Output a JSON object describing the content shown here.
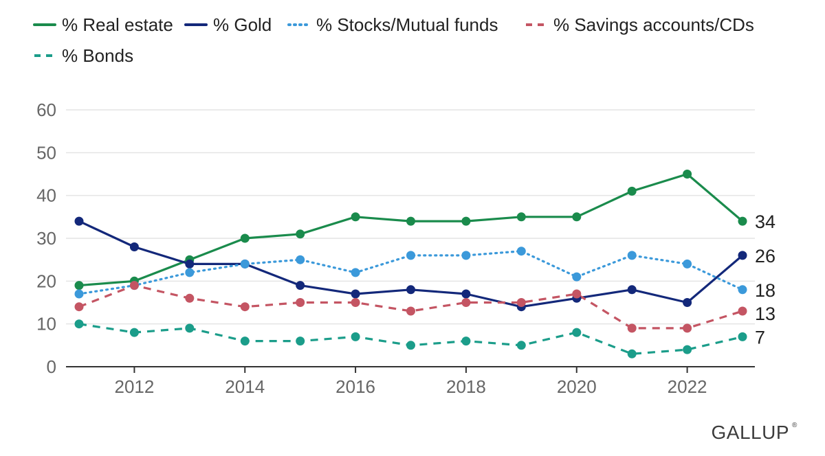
{
  "chart_data": {
    "type": "line",
    "title": "",
    "xlabel": "",
    "ylabel": "",
    "x": [
      2011,
      2012,
      2013,
      2014,
      2015,
      2016,
      2017,
      2018,
      2019,
      2020,
      2021,
      2022,
      2023
    ],
    "xlim": [
      2011,
      2023
    ],
    "ylim": [
      0,
      60
    ],
    "x_ticks": [
      "2012",
      "2014",
      "2016",
      "2018",
      "2020",
      "2022"
    ],
    "y_ticks": [
      "0",
      "10",
      "20",
      "30",
      "40",
      "50",
      "60"
    ],
    "grid": "horizontal",
    "legend_position": "top",
    "series": [
      {
        "name": "% Real estate",
        "style": "solid",
        "color": "#1a8b4c",
        "values": [
          19,
          20,
          25,
          30,
          31,
          35,
          34,
          34,
          35,
          35,
          41,
          45,
          34
        ],
        "end_label": "34"
      },
      {
        "name": "% Gold",
        "style": "solid",
        "color": "#13287a",
        "values": [
          34,
          28,
          24,
          24,
          19,
          17,
          18,
          17,
          14,
          16,
          18,
          15,
          26
        ],
        "end_label": "26"
      },
      {
        "name": "% Stocks/Mutual funds",
        "style": "dotted",
        "color": "#3b99da",
        "values": [
          17,
          19,
          22,
          24,
          25,
          22,
          26,
          26,
          27,
          21,
          26,
          24,
          18
        ],
        "end_label": "18"
      },
      {
        "name": "% Savings accounts/CDs",
        "style": "dashed",
        "color": "#c45563",
        "values": [
          14,
          19,
          16,
          14,
          15,
          15,
          13,
          15,
          15,
          17,
          9,
          9,
          13
        ],
        "end_label": "13"
      },
      {
        "name": "% Bonds",
        "style": "dashed",
        "color": "#1b9d8a",
        "values": [
          10,
          8,
          9,
          6,
          6,
          7,
          5,
          6,
          5,
          8,
          3,
          4,
          7
        ],
        "end_label": "7"
      }
    ]
  },
  "branding": {
    "logo_text": "GALLUP"
  }
}
